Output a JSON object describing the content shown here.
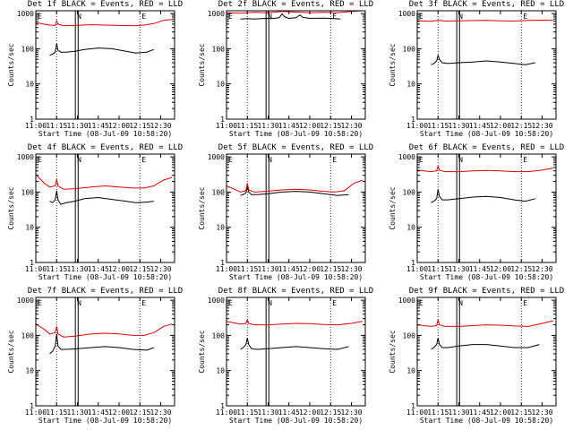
{
  "chart_data": {
    "type": "line",
    "layout": "3x3 grid",
    "shared": {
      "xlabel": "Start Time (08-Jul-09 10:58:20)",
      "ylabel": "Counts/sec",
      "x_ticks": [
        "11:00",
        "11:15",
        "11:30",
        "11:45",
        "12:00",
        "12:15",
        "12:30"
      ],
      "x_tick_minutes": [
        0,
        15,
        30,
        45,
        60,
        75,
        90
      ],
      "xlim_minutes": [
        0,
        100
      ],
      "y_ticks": [
        "1",
        "10",
        "100",
        "1000"
      ],
      "y_tick_values": [
        1,
        10,
        100,
        1000
      ],
      "y_scale": "log",
      "ylim": [
        1,
        1200
      ],
      "grid_minutes": [
        15,
        75
      ],
      "vertical_bar_minutes": [
        28.5,
        30.5
      ],
      "markers": [
        {
          "text": "E",
          "minute": 0
        },
        {
          "text": "N",
          "minute": 28.5
        },
        {
          "text": "E",
          "minute": 75
        }
      ],
      "series_colors": {
        "events": "#000000",
        "lld": "#dd0000"
      }
    },
    "panels": [
      {
        "title": "Det 1f BLACK = Events, RED = LLD",
        "series": [
          {
            "key": "events",
            "x": [
              10,
              12,
              14,
              15,
              16,
              18,
              22,
              28,
              35,
              45,
              55,
              65,
              72,
              80,
              85
            ],
            "y": [
              65,
              70,
              80,
              140,
              90,
              80,
              80,
              85,
              95,
              105,
              100,
              85,
              75,
              80,
              95
            ]
          },
          {
            "key": "lld",
            "x": [
              0,
              10,
              14,
              15,
              16,
              20,
              28,
              40,
              50,
              60,
              72,
              78,
              85,
              92,
              98
            ],
            "y": [
              550,
              470,
              460,
              620,
              500,
              450,
              460,
              480,
              470,
              460,
              450,
              470,
              520,
              640,
              680
            ]
          }
        ]
      },
      {
        "title": "Det 2f BLACK = Events, RED = LLD",
        "series": [
          {
            "key": "events",
            "x": [
              10,
              15,
              20,
              28,
              33,
              38,
              40,
              42,
              45,
              50,
              53,
              55,
              60,
              70,
              78,
              82
            ],
            "y": [
              700,
              720,
              700,
              730,
              720,
              760,
              980,
              800,
              730,
              760,
              910,
              780,
              730,
              740,
              720,
              700
            ]
          },
          {
            "key": "lld",
            "x": [
              0,
              10,
              20,
              30,
              40,
              50,
              60,
              70,
              80,
              90,
              98
            ],
            "y": [
              1050,
              1020,
              1080,
              1050,
              1150,
              1100,
              1050,
              1080,
              1050,
              1150,
              1200
            ]
          }
        ]
      },
      {
        "title": "Det 3f BLACK = Events, RED = LLD",
        "series": [
          {
            "key": "events",
            "x": [
              10,
              12,
              14,
              15,
              16,
              18,
              22,
              30,
              40,
              50,
              60,
              70,
              78,
              85
            ],
            "y": [
              35,
              38,
              45,
              65,
              50,
              40,
              38,
              40,
              42,
              45,
              42,
              38,
              35,
              40
            ]
          },
          {
            "key": "lld",
            "x": [
              0,
              10,
              15,
              20,
              30,
              40,
              50,
              60,
              70,
              80,
              90,
              98
            ],
            "y": [
              620,
              600,
              640,
              610,
              620,
              630,
              640,
              620,
              610,
              640,
              650,
              640
            ]
          }
        ]
      },
      {
        "title": "Det 4f BLACK = Events, RED = LLD",
        "series": [
          {
            "key": "events",
            "x": [
              10,
              12,
              14,
              15,
              16,
              18,
              22,
              28,
              35,
              45,
              55,
              65,
              72,
              80,
              85
            ],
            "y": [
              55,
              50,
              60,
              110,
              60,
              45,
              50,
              55,
              65,
              70,
              62,
              55,
              50,
              52,
              55
            ]
          },
          {
            "key": "lld",
            "x": [
              0,
              6,
              10,
              14,
              15,
              16,
              20,
              28,
              40,
              50,
              60,
              70,
              78,
              85,
              92,
              98
            ],
            "y": [
              320,
              180,
              140,
              150,
              230,
              150,
              120,
              125,
              140,
              150,
              140,
              130,
              130,
              150,
              220,
              260
            ]
          }
        ]
      },
      {
        "title": "Det 5f BLACK = Events, RED = LLD",
        "series": [
          {
            "key": "events",
            "x": [
              10,
              12,
              14,
              15,
              16,
              18,
              22,
              30,
              40,
              50,
              60,
              70,
              80,
              88
            ],
            "y": [
              80,
              85,
              95,
              140,
              100,
              85,
              85,
              90,
              100,
              105,
              100,
              90,
              80,
              85
            ]
          },
          {
            "key": "lld",
            "x": [
              0,
              6,
              10,
              14,
              15,
              16,
              20,
              28,
              40,
              50,
              60,
              70,
              78,
              85,
              92,
              98
            ],
            "y": [
              150,
              120,
              100,
              110,
              180,
              115,
              100,
              105,
              115,
              120,
              115,
              105,
              100,
              110,
              180,
              220
            ]
          }
        ]
      },
      {
        "title": "Det 6f BLACK = Events, RED = LLD",
        "series": [
          {
            "key": "events",
            "x": [
              10,
              12,
              14,
              15,
              16,
              18,
              22,
              30,
              40,
              50,
              60,
              70,
              78,
              85
            ],
            "y": [
              50,
              55,
              65,
              120,
              75,
              60,
              60,
              65,
              72,
              75,
              70,
              60,
              55,
              65
            ]
          },
          {
            "key": "lld",
            "x": [
              0,
              10,
              14,
              15,
              16,
              20,
              30,
              40,
              50,
              60,
              70,
              80,
              90,
              98
            ],
            "y": [
              420,
              380,
              400,
              550,
              420,
              380,
              380,
              400,
              410,
              400,
              380,
              380,
              420,
              480
            ]
          }
        ]
      },
      {
        "title": "Det 7f BLACK = Events, RED = LLD",
        "series": [
          {
            "key": "events",
            "x": [
              10,
              12,
              14,
              15,
              16,
              18,
              22,
              30,
              40,
              50,
              60,
              70,
              80,
              85
            ],
            "y": [
              30,
              35,
              50,
              110,
              50,
              40,
              40,
              42,
              45,
              48,
              45,
              40,
              38,
              45
            ]
          },
          {
            "key": "lld",
            "x": [
              0,
              6,
              10,
              14,
              15,
              16,
              20,
              28,
              40,
              50,
              60,
              70,
              78,
              85,
              92,
              98
            ],
            "y": [
              210,
              150,
              110,
              120,
              180,
              110,
              90,
              95,
              110,
              115,
              110,
              100,
              100,
              120,
              180,
              210
            ]
          }
        ]
      },
      {
        "title": "Det 8f BLACK = Events, RED = LLD",
        "series": [
          {
            "key": "events",
            "x": [
              10,
              12,
              14,
              15,
              16,
              18,
              22,
              30,
              40,
              50,
              60,
              70,
              80,
              88
            ],
            "y": [
              40,
              45,
              55,
              85,
              55,
              42,
              40,
              42,
              45,
              48,
              45,
              42,
              40,
              48
            ]
          },
          {
            "key": "lld",
            "x": [
              0,
              10,
              14,
              15,
              16,
              20,
              30,
              40,
              50,
              60,
              70,
              80,
              90,
              98
            ],
            "y": [
              250,
              210,
              220,
              280,
              220,
              200,
              200,
              210,
              220,
              215,
              205,
              200,
              220,
              250
            ]
          }
        ]
      },
      {
        "title": "Det 9f BLACK = Events, RED = LLD",
        "series": [
          {
            "key": "events",
            "x": [
              10,
              12,
              14,
              15,
              16,
              18,
              22,
              30,
              40,
              50,
              60,
              70,
              80,
              88
            ],
            "y": [
              40,
              45,
              55,
              85,
              55,
              45,
              45,
              50,
              55,
              55,
              50,
              45,
              45,
              55
            ]
          },
          {
            "key": "lld",
            "x": [
              0,
              10,
              14,
              15,
              16,
              20,
              30,
              40,
              50,
              60,
              70,
              80,
              90,
              98
            ],
            "y": [
              200,
              180,
              190,
              280,
              200,
              180,
              180,
              190,
              200,
              195,
              185,
              180,
              220,
              260
            ]
          }
        ]
      }
    ]
  }
}
